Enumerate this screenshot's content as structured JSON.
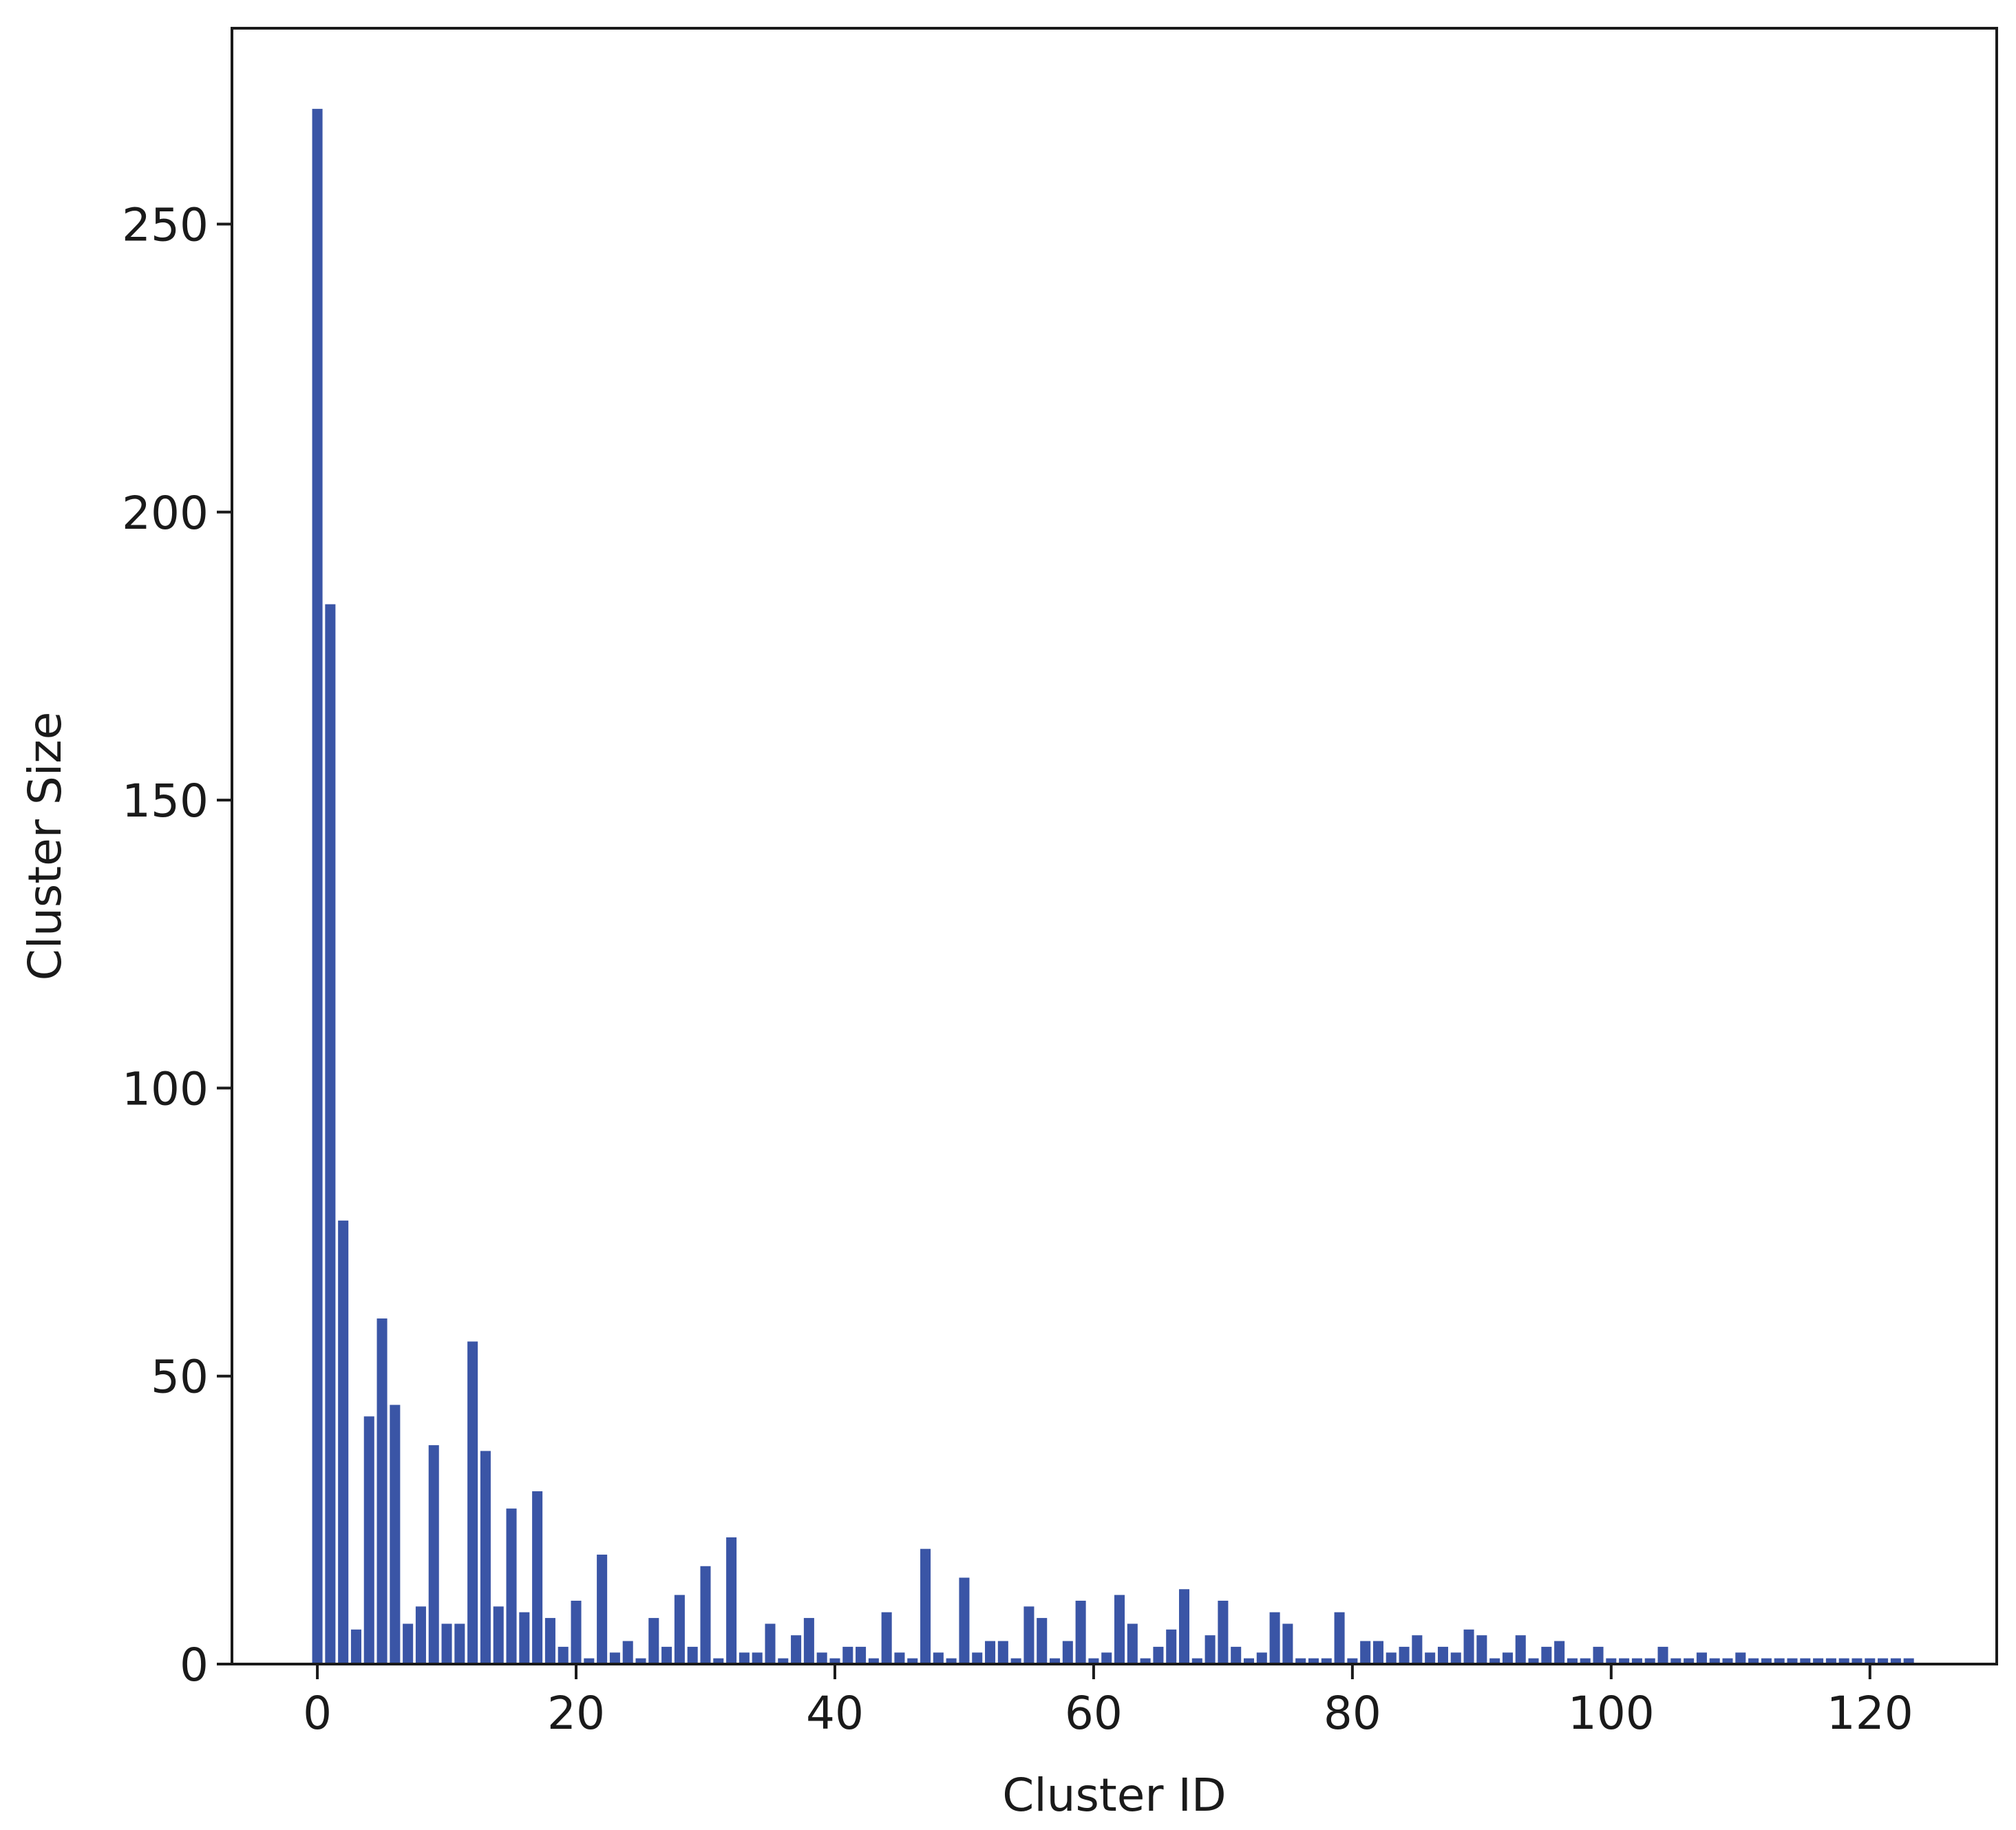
{
  "chart_data": {
    "type": "bar",
    "xlabel": "Cluster ID",
    "ylabel": "Cluster Size",
    "x": [
      0,
      1,
      2,
      3,
      4,
      5,
      6,
      7,
      8,
      9,
      10,
      11,
      12,
      13,
      14,
      15,
      16,
      17,
      18,
      19,
      20,
      21,
      22,
      23,
      24,
      25,
      26,
      27,
      28,
      29,
      30,
      31,
      32,
      33,
      34,
      35,
      36,
      37,
      38,
      39,
      40,
      41,
      42,
      43,
      44,
      45,
      46,
      47,
      48,
      49,
      50,
      51,
      52,
      53,
      54,
      55,
      56,
      57,
      58,
      59,
      60,
      61,
      62,
      63,
      64,
      65,
      66,
      67,
      68,
      69,
      70,
      71,
      72,
      73,
      74,
      75,
      76,
      77,
      78,
      79,
      80,
      81,
      82,
      83,
      84,
      85,
      86,
      87,
      88,
      89,
      90,
      91,
      92,
      93,
      94,
      95,
      96,
      97,
      98,
      99,
      100,
      101,
      102,
      103,
      104,
      105,
      106,
      107,
      108,
      109,
      110,
      111,
      112,
      113,
      114,
      115,
      116,
      117,
      118,
      119,
      120,
      121,
      122,
      123
    ],
    "values": [
      270,
      184,
      77,
      6,
      43,
      60,
      45,
      7,
      10,
      38,
      7,
      7,
      56,
      37,
      10,
      27,
      9,
      30,
      8,
      3,
      11,
      1,
      19,
      2,
      4,
      1,
      8,
      3,
      12,
      3,
      17,
      1,
      22,
      2,
      2,
      7,
      1,
      5,
      8,
      2,
      1,
      3,
      3,
      1,
      9,
      2,
      1,
      20,
      2,
      1,
      15,
      2,
      4,
      4,
      1,
      10,
      8,
      1,
      4,
      11,
      1,
      2,
      12,
      7,
      1,
      3,
      6,
      13,
      1,
      5,
      11,
      3,
      1,
      2,
      9,
      7,
      1,
      1,
      1,
      9,
      1,
      4,
      4,
      2,
      3,
      5,
      2,
      3,
      2,
      6,
      5,
      1,
      2,
      5,
      1,
      3,
      4,
      1,
      1,
      3,
      1,
      1,
      1,
      1,
      3,
      1,
      1,
      2,
      1,
      1,
      2,
      1,
      1,
      1,
      1,
      1,
      1,
      1,
      1,
      1,
      1,
      1,
      1,
      1
    ],
    "color": "#3a55a6",
    "xlim": [
      -6.6,
      129.8
    ],
    "xticks": [
      0,
      20,
      40,
      60,
      80,
      100,
      120
    ],
    "ylim": [
      0,
      284
    ],
    "yticks": [
      0,
      50,
      100,
      150,
      200,
      250
    ],
    "bar_width": 0.8
  }
}
